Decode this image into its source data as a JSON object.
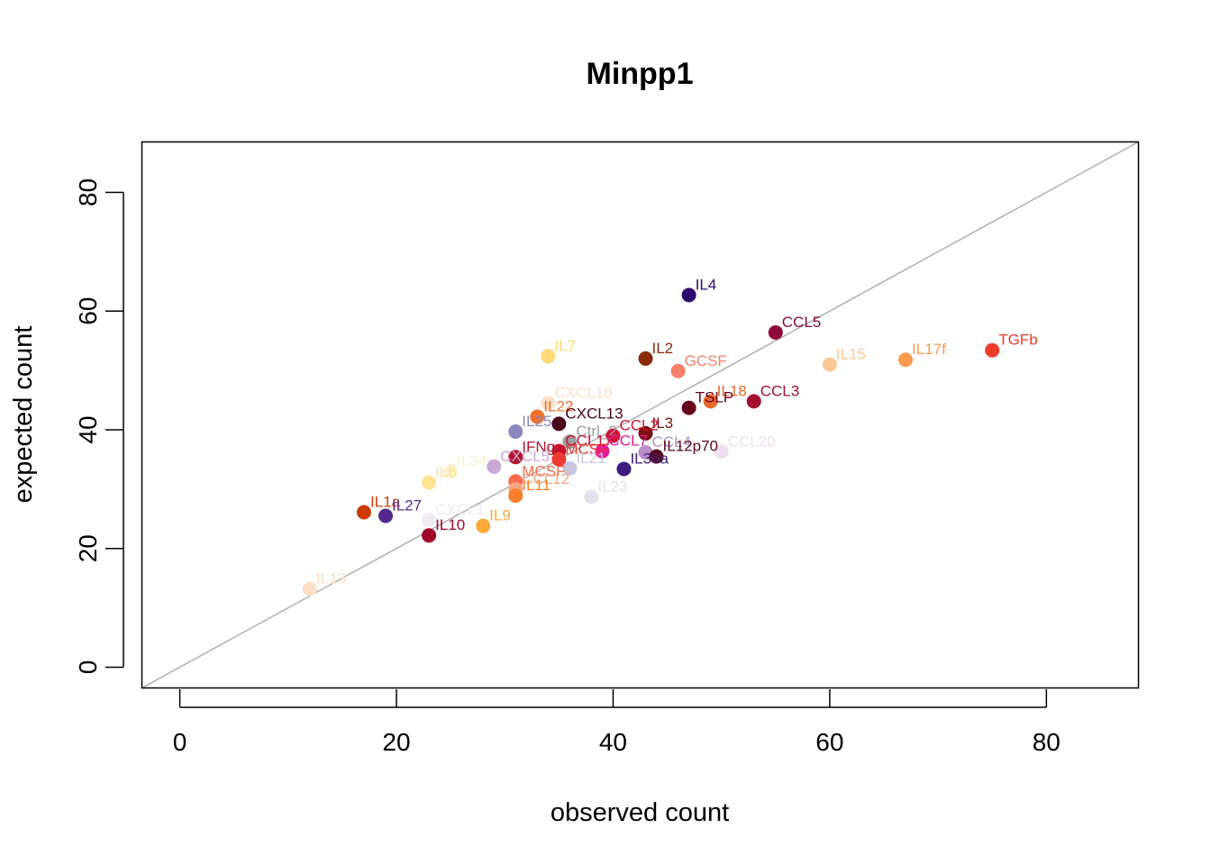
{
  "chart_data": {
    "type": "scatter",
    "title": "Minpp1",
    "xlabel": "observed count",
    "ylabel": "expected count",
    "xlim": [
      -3.5,
      88.5
    ],
    "ylim": [
      -3.5,
      88.5
    ],
    "x_ticks": [
      0,
      20,
      40,
      60,
      80
    ],
    "y_ticks": [
      0,
      20,
      40,
      60,
      80
    ],
    "reference_line": "y = x",
    "reference_line_color": "#b3b3b3",
    "grid": false,
    "legend": "none",
    "points": [
      {
        "label": "IL4",
        "x": 47,
        "y": 62.7,
        "color": "#2d0a6e"
      },
      {
        "label": "CCL5",
        "x": 55,
        "y": 56.4,
        "color": "#8c0a3c"
      },
      {
        "label": "TGFb",
        "x": 75,
        "y": 53.4,
        "color": "#ef3b2c"
      },
      {
        "label": "IL7",
        "x": 34,
        "y": 52.4,
        "color": "#fed976"
      },
      {
        "label": "IL2",
        "x": 43,
        "y": 52.0,
        "color": "#8b2a0a"
      },
      {
        "label": "IL17f",
        "x": 67,
        "y": 51.8,
        "color": "#fd9a50"
      },
      {
        "label": "IL15",
        "x": 60,
        "y": 51.0,
        "color": "#fdc896"
      },
      {
        "label": "GCSF",
        "x": 46,
        "y": 49.9,
        "color": "#f7806a"
      },
      {
        "label": "CXCL10",
        "x": 34,
        "y": 44.5,
        "color": "#fde0c5"
      },
      {
        "label": "IL18",
        "x": 49,
        "y": 44.8,
        "color": "#e76a2a"
      },
      {
        "label": "CCL3",
        "x": 53,
        "y": 44.8,
        "color": "#a50f30"
      },
      {
        "label": "TSLP",
        "x": 47,
        "y": 43.7,
        "color": "#67001f"
      },
      {
        "label": "IL22",
        "x": 33,
        "y": 42.2,
        "color": "#f0702c"
      },
      {
        "label": "CXCL13",
        "x": 35,
        "y": 41.0,
        "color": "#4a0418"
      },
      {
        "label": "IL25",
        "x": 31,
        "y": 39.7,
        "color": "#8c88c0"
      },
      {
        "label": "IL3",
        "x": 43,
        "y": 39.4,
        "color": "#7a1010"
      },
      {
        "label": "CCL2",
        "x": 40,
        "y": 39.0,
        "color": "#d6133a"
      },
      {
        "label": "Ctrl_2",
        "x": 36,
        "y": 38.0,
        "color": "#9e9e9e"
      },
      {
        "label": "CCL17",
        "x": 35,
        "y": 36.4,
        "color": "#c41230"
      },
      {
        "label": "CCL7",
        "x": 39,
        "y": 36.4,
        "color": "#e6199b"
      },
      {
        "label": "CCL4",
        "x": 43,
        "y": 36.2,
        "color": "#b98fc8"
      },
      {
        "label": "CCL20",
        "x": 50,
        "y": 36.3,
        "color": "#efe0ef"
      },
      {
        "label": "IFNg",
        "x": 31,
        "y": 35.4,
        "color": "#b01530"
      },
      {
        "label": "MCSF",
        "x": 35,
        "y": 35.0,
        "color": "#ee3a30"
      },
      {
        "label": "IL12p70",
        "x": 44,
        "y": 35.5,
        "color": "#5a0a1c"
      },
      {
        "label": "IL21",
        "x": 36,
        "y": 33.5,
        "color": "#c9c7de"
      },
      {
        "label": "IL36a",
        "x": 41,
        "y": 33.4,
        "color": "#3f1d80"
      },
      {
        "label": "IL34",
        "x": 25,
        "y": 33.0,
        "color": "#f7f3d0"
      },
      {
        "label": "CXCL5",
        "x": 29,
        "y": 33.8,
        "color": "#c9a8d8"
      },
      {
        "label": "IL6",
        "x": 23,
        "y": 31.1,
        "color": "#fee391"
      },
      {
        "label": "MCSF",
        "x": 31,
        "y": 31.3,
        "color": "#fb6a4a"
      },
      {
        "label": "CCL12",
        "x": 31,
        "y": 30.0,
        "color": "#f4a582"
      },
      {
        "label": "IL11",
        "x": 31,
        "y": 28.9,
        "color": "#f7802a"
      },
      {
        "label": "IL23",
        "x": 38,
        "y": 28.7,
        "color": "#e3e1ee"
      },
      {
        "label": "IL1a",
        "x": 17,
        "y": 26.1,
        "color": "#cc3a0a"
      },
      {
        "label": "IL27",
        "x": 19,
        "y": 25.5,
        "color": "#54278f"
      },
      {
        "label": "CXCL1",
        "x": 23,
        "y": 24.8,
        "color": "#f0eaf5"
      },
      {
        "label": "IL9",
        "x": 28,
        "y": 23.8,
        "color": "#fca83a"
      },
      {
        "label": "IL10",
        "x": 23,
        "y": 22.2,
        "color": "#a0072a"
      },
      {
        "label": "IL13",
        "x": 12,
        "y": 13.2,
        "color": "#fde0c8"
      }
    ]
  }
}
